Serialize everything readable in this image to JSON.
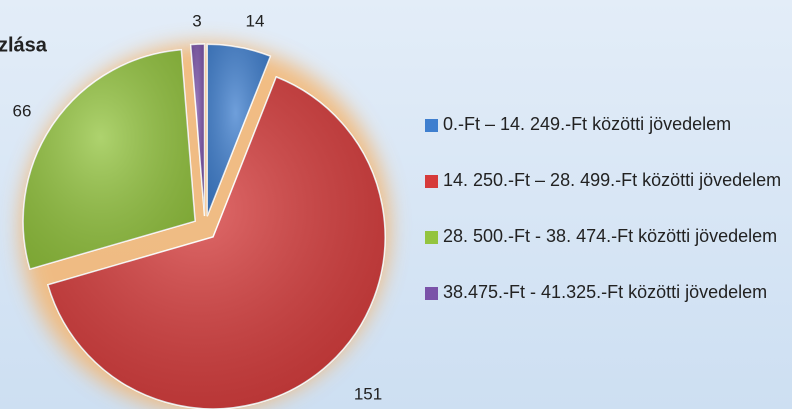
{
  "chart_data": {
    "type": "pie",
    "title": "zlása",
    "categories": [
      "0.-Ft – 14. 249.-Ft közötti jövedelem",
      "14. 250.-Ft – 28. 499.-Ft közötti jövedelem",
      "28. 500.-Ft - 38. 474.-Ft közötti jövedelem",
      "38.475.-Ft - 41.325.-Ft közötti jövedelem"
    ],
    "values": [
      14,
      151,
      66,
      3
    ],
    "colors": [
      "#3f7fcf",
      "#d63a3a",
      "#93c43e",
      "#7a52a8"
    ],
    "legend": "right"
  }
}
